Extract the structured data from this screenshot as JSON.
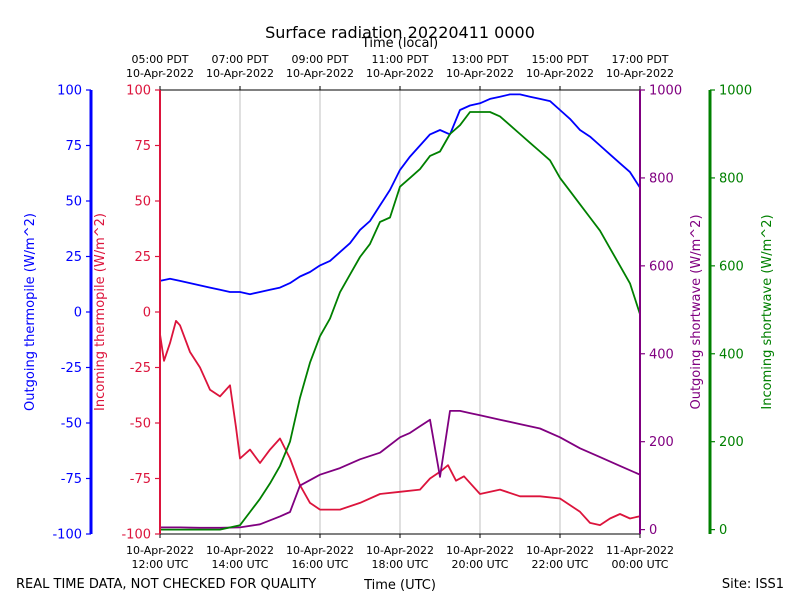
{
  "chart_data": {
    "type": "line",
    "title": "Surface radiation 20220411 0000",
    "top_axis_label": "Time (local)",
    "xlabel": "Time (UTC)",
    "footer_left": "REAL TIME DATA, NOT CHECKED FOR QUALITY",
    "footer_right": "Site: ISS1",
    "x_range_hours_utc": [
      12,
      24
    ],
    "bottom_ticks": [
      {
        "hour": 12,
        "line1": "10-Apr-2022",
        "line2": "12:00 UTC"
      },
      {
        "hour": 14,
        "line1": "10-Apr-2022",
        "line2": "14:00 UTC"
      },
      {
        "hour": 16,
        "line1": "10-Apr-2022",
        "line2": "16:00 UTC"
      },
      {
        "hour": 18,
        "line1": "10-Apr-2022",
        "line2": "18:00 UTC"
      },
      {
        "hour": 20,
        "line1": "10-Apr-2022",
        "line2": "20:00 UTC"
      },
      {
        "hour": 22,
        "line1": "10-Apr-2022",
        "line2": "22:00 UTC"
      },
      {
        "hour": 24,
        "line1": "11-Apr-2022",
        "line2": "00:00 UTC"
      }
    ],
    "top_ticks": [
      {
        "hour": 12,
        "line1": "05:00 PDT",
        "line2": "10-Apr-2022"
      },
      {
        "hour": 14,
        "line1": "07:00 PDT",
        "line2": "10-Apr-2022"
      },
      {
        "hour": 16,
        "line1": "09:00 PDT",
        "line2": "10-Apr-2022"
      },
      {
        "hour": 18,
        "line1": "11:00 PDT",
        "line2": "10-Apr-2022"
      },
      {
        "hour": 20,
        "line1": "13:00 PDT",
        "line2": "10-Apr-2022"
      },
      {
        "hour": 22,
        "line1": "15:00 PDT",
        "line2": "10-Apr-2022"
      },
      {
        "hour": 24,
        "line1": "17:00 PDT",
        "line2": "10-Apr-2022"
      }
    ],
    "axes": [
      {
        "id": "out_thermo",
        "label": "Outgoing thermopile (W/m^2)",
        "color": "#0000ff",
        "side": "left-outer",
        "range": [
          -100,
          100
        ],
        "ticks": [
          -100,
          -75,
          -50,
          -25,
          0,
          25,
          50,
          75,
          100
        ]
      },
      {
        "id": "in_thermo",
        "label": "Incoming thermopile (W/m^2)",
        "color": "#dc143c",
        "side": "left-inner",
        "range": [
          -100,
          100
        ],
        "ticks": [
          -100,
          -75,
          -50,
          -25,
          0,
          25,
          50,
          75,
          100
        ]
      },
      {
        "id": "out_sw",
        "label": "Outgoing shortwave (W/m^2)",
        "color": "#800080",
        "side": "right-inner",
        "range": [
          -10,
          1000
        ],
        "ticks": [
          0,
          200,
          400,
          600,
          800,
          1000
        ]
      },
      {
        "id": "in_sw",
        "label": "Incoming shortwave (W/m^2)",
        "color": "#008000",
        "side": "right-outer",
        "range": [
          -10,
          1000
        ],
        "ticks": [
          0,
          200,
          400,
          600,
          800,
          1000
        ]
      }
    ],
    "series": [
      {
        "axis": "out_thermo",
        "color": "#0000ff",
        "x": [
          12.0,
          12.25,
          12.5,
          12.75,
          13.0,
          13.25,
          13.5,
          13.75,
          14.0,
          14.25,
          14.5,
          14.75,
          15.0,
          15.25,
          15.5,
          15.75,
          16.0,
          16.25,
          16.5,
          16.75,
          17.0,
          17.25,
          17.5,
          17.75,
          18.0,
          18.25,
          18.5,
          18.75,
          19.0,
          19.25,
          19.5,
          19.75,
          20.0,
          20.25,
          20.5,
          20.75,
          21.0,
          21.25,
          21.5,
          21.75,
          22.0,
          22.25,
          22.5,
          22.75,
          23.0,
          23.25,
          23.5,
          23.75,
          24.0
        ],
        "y": [
          14,
          15,
          14,
          13,
          12,
          11,
          10,
          9,
          9,
          8,
          9,
          10,
          11,
          13,
          16,
          18,
          21,
          23,
          27,
          31,
          37,
          41,
          48,
          55,
          64,
          70,
          75,
          80,
          82,
          80,
          91,
          93,
          94,
          96,
          97,
          98,
          98,
          97,
          96,
          95,
          91,
          87,
          82,
          79,
          75,
          71,
          67,
          63,
          56
        ]
      },
      {
        "axis": "in_thermo",
        "color": "#dc143c",
        "x": [
          12.0,
          12.1,
          12.25,
          12.4,
          12.5,
          12.75,
          13.0,
          13.25,
          13.5,
          13.75,
          13.9,
          14.0,
          14.25,
          14.5,
          14.75,
          15.0,
          15.25,
          15.5,
          15.75,
          16.0,
          16.5,
          17.0,
          17.5,
          18.0,
          18.5,
          18.75,
          19.0,
          19.2,
          19.4,
          19.6,
          20.0,
          20.5,
          21.0,
          21.5,
          22.0,
          22.25,
          22.5,
          22.75,
          23.0,
          23.25,
          23.5,
          23.75,
          24.0
        ],
        "y": [
          -10,
          -22,
          -14,
          -4,
          -6,
          -18,
          -25,
          -35,
          -38,
          -33,
          -52,
          -66,
          -62,
          -68,
          -62,
          -57,
          -66,
          -78,
          -86,
          -89,
          -89,
          -86,
          -82,
          -81,
          -80,
          -75,
          -72,
          -69,
          -76,
          -74,
          -82,
          -80,
          -83,
          -83,
          -84,
          -87,
          -90,
          -95,
          -96,
          -93,
          -91,
          -93,
          -92
        ]
      },
      {
        "axis": "out_sw",
        "color": "#800080",
        "x": [
          12.0,
          12.5,
          13.0,
          13.5,
          14.0,
          14.5,
          15.0,
          15.25,
          15.5,
          16.0,
          16.5,
          17.0,
          17.5,
          18.0,
          18.25,
          18.5,
          18.75,
          19.0,
          19.25,
          19.5,
          19.75,
          20.0,
          20.5,
          21.0,
          21.5,
          22.0,
          22.5,
          23.0,
          23.5,
          24.0
        ],
        "y": [
          5,
          5,
          4,
          4,
          5,
          12,
          30,
          40,
          100,
          125,
          140,
          160,
          175,
          210,
          220,
          235,
          250,
          120,
          270,
          270,
          265,
          260,
          250,
          240,
          230,
          210,
          185,
          165,
          145,
          125
        ]
      },
      {
        "axis": "in_sw",
        "color": "#008000",
        "x": [
          12.0,
          12.5,
          13.0,
          13.5,
          14.0,
          14.25,
          14.5,
          14.75,
          15.0,
          15.25,
          15.5,
          15.75,
          16.0,
          16.25,
          16.5,
          16.75,
          17.0,
          17.25,
          17.5,
          17.75,
          18.0,
          18.25,
          18.5,
          18.75,
          19.0,
          19.25,
          19.5,
          19.75,
          20.0,
          20.25,
          20.5,
          20.75,
          21.0,
          21.25,
          21.5,
          21.75,
          22.0,
          22.25,
          22.5,
          22.75,
          23.0,
          23.25,
          23.5,
          23.75,
          24.0
        ],
        "y": [
          0,
          0,
          0,
          0,
          10,
          40,
          70,
          105,
          145,
          200,
          300,
          380,
          440,
          480,
          540,
          580,
          620,
          650,
          700,
          710,
          780,
          800,
          820,
          850,
          860,
          900,
          920,
          950,
          950,
          950,
          940,
          920,
          900,
          880,
          860,
          840,
          800,
          770,
          740,
          710,
          680,
          640,
          600,
          560,
          490
        ]
      }
    ]
  }
}
